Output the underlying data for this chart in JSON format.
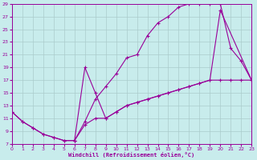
{
  "xlabel": "Windchill (Refroidissement éolien,°C)",
  "bg_color": "#c8ecec",
  "grid_color": "#aacccc",
  "line_color": "#990099",
  "xmin": 0,
  "xmax": 23,
  "ymin": 7,
  "ymax": 29,
  "yticks": [
    7,
    9,
    11,
    13,
    15,
    17,
    19,
    21,
    23,
    25,
    27,
    29
  ],
  "xticks": [
    0,
    1,
    2,
    3,
    4,
    5,
    6,
    7,
    8,
    9,
    10,
    11,
    12,
    13,
    14,
    15,
    16,
    17,
    18,
    19,
    20,
    21,
    22,
    23
  ],
  "curve1_x": [
    0,
    1,
    2,
    3,
    4,
    5,
    6,
    7,
    8,
    9,
    10,
    11,
    12,
    13,
    14,
    15,
    16,
    17,
    18,
    19,
    20,
    21,
    22,
    23
  ],
  "curve1_y": [
    12,
    10.5,
    9.5,
    8.5,
    8,
    7.5,
    7.5,
    10.5,
    14,
    16,
    18,
    20.5,
    21,
    24,
    26,
    27,
    28.5,
    29,
    29,
    29,
    29,
    22,
    20,
    17
  ],
  "curve2_x": [
    0,
    1,
    2,
    3,
    4,
    5,
    6,
    7,
    8,
    9,
    10,
    11,
    12,
    13,
    14,
    15,
    16,
    17,
    18,
    19,
    20,
    21,
    22,
    23
  ],
  "curve2_y": [
    12,
    10.5,
    9.5,
    8.5,
    8,
    7.5,
    7.5,
    10,
    11,
    11,
    12,
    13,
    13.5,
    14,
    14.5,
    15,
    15.5,
    16,
    16.5,
    17,
    17,
    17,
    17,
    17
  ],
  "curve3_x": [
    6,
    7,
    8,
    9,
    10,
    11,
    12,
    13,
    14,
    15,
    16,
    17,
    18,
    19,
    20,
    23
  ],
  "curve3_y": [
    7.5,
    19,
    15,
    11,
    12,
    13,
    13.5,
    14,
    14.5,
    15,
    15.5,
    16,
    16.5,
    17,
    28,
    17
  ]
}
